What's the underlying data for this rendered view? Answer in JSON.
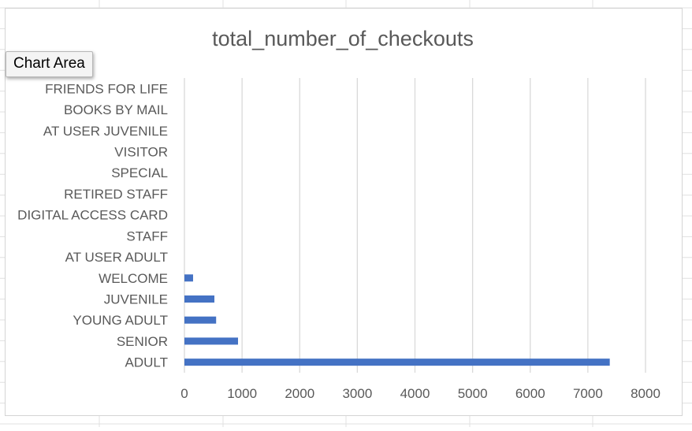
{
  "tooltip": "Chart Area",
  "colors": {
    "bar": "#4472C4",
    "grid": "#d9d9d9",
    "text": "#595959",
    "title": "#595959",
    "sheet_grid": "#e0e0e0"
  },
  "chart_data": {
    "type": "bar",
    "orientation": "horizontal",
    "title": "total_number_of_checkouts",
    "categories": [
      "ADULT",
      "SENIOR",
      "YOUNG ADULT",
      "JUVENILE",
      "WELCOME",
      "AT USER ADULT",
      "STAFF",
      "DIGITAL ACCESS CARD",
      "RETIRED STAFF",
      "SPECIAL",
      "VISITOR",
      "AT USER JUVENILE",
      "BOOKS BY MAIL",
      "FRIENDS FOR LIFE"
    ],
    "values": [
      7380,
      930,
      550,
      520,
      150,
      0,
      0,
      0,
      0,
      0,
      0,
      0,
      0,
      0
    ],
    "xlim": [
      0,
      8000
    ],
    "xticks": [
      0,
      1000,
      2000,
      3000,
      4000,
      5000,
      6000,
      7000,
      8000
    ],
    "grid": true,
    "legend": "none"
  }
}
